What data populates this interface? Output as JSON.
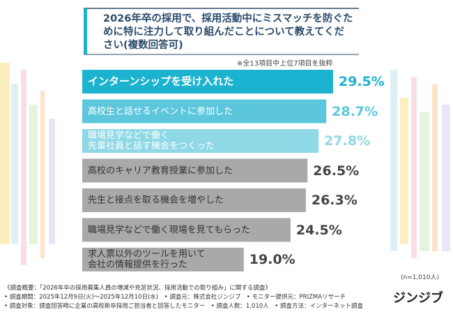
{
  "chart_data": {
    "type": "bar",
    "title": "2026年卒の採用で、採用活動中にミスマッチを防ぐために特に注力して取り組んだことについて教えてください(複数回答可)",
    "note": "※全13項目中上位7項目を抜粋",
    "categories": [
      "インターンシップを受け入れた",
      "高校生と話せるイベントに参加した",
      "職場見学などで働く\n先輩社員と話す機会をつくった",
      "高校のキャリア教育授業に参加した",
      "先生と接点を取る機会を増やした",
      "職場見学などで働く現場を見てもらった",
      "求人票以外のツールを用いて\n会社の情報提供を行った"
    ],
    "values": [
      29.5,
      28.7,
      27.8,
      26.5,
      26.3,
      24.5,
      19.0
    ],
    "value_labels": [
      "29.5%",
      "28.7%",
      "27.8%",
      "26.5%",
      "26.3%",
      "24.5%",
      "19.0%"
    ],
    "colors": [
      "#1bb3cf",
      "#5cc7dc",
      "#8fd8e6",
      "#a9a9a9",
      "#a9a9a9",
      "#a9a9a9",
      "#a9a9a9"
    ],
    "label_colors": [
      "#ffffff",
      "#ffffff",
      "#ffffff",
      "#333333",
      "#333333",
      "#333333",
      "#333333"
    ],
    "value_label_colors": [
      "#1bb3cf",
      "#5cc7dc",
      "#8fd8e6",
      "#444444",
      "#444444",
      "#444444",
      "#444444"
    ],
    "xlim": [
      0,
      30
    ],
    "sample": "(n=1,010人)",
    "footnotes": [
      "《調査概要：「2026年卒の採用募集人員の増減や充足状況、採用活動での取り組み」に関する調査》",
      "• 調査期間：2025年12月9日(火)～2025年12月10日(水)　• 調査元：株式会社ジンジブ　• モニター提供元：PRIZMAリサーチ",
      "• 調査対象：調査回答時に企業の高校新卒採用ご担当者と回答したモニター　• 調査人数：1,010人　• 調査方法：インターネット調査"
    ],
    "logo": "ジンジブ"
  }
}
